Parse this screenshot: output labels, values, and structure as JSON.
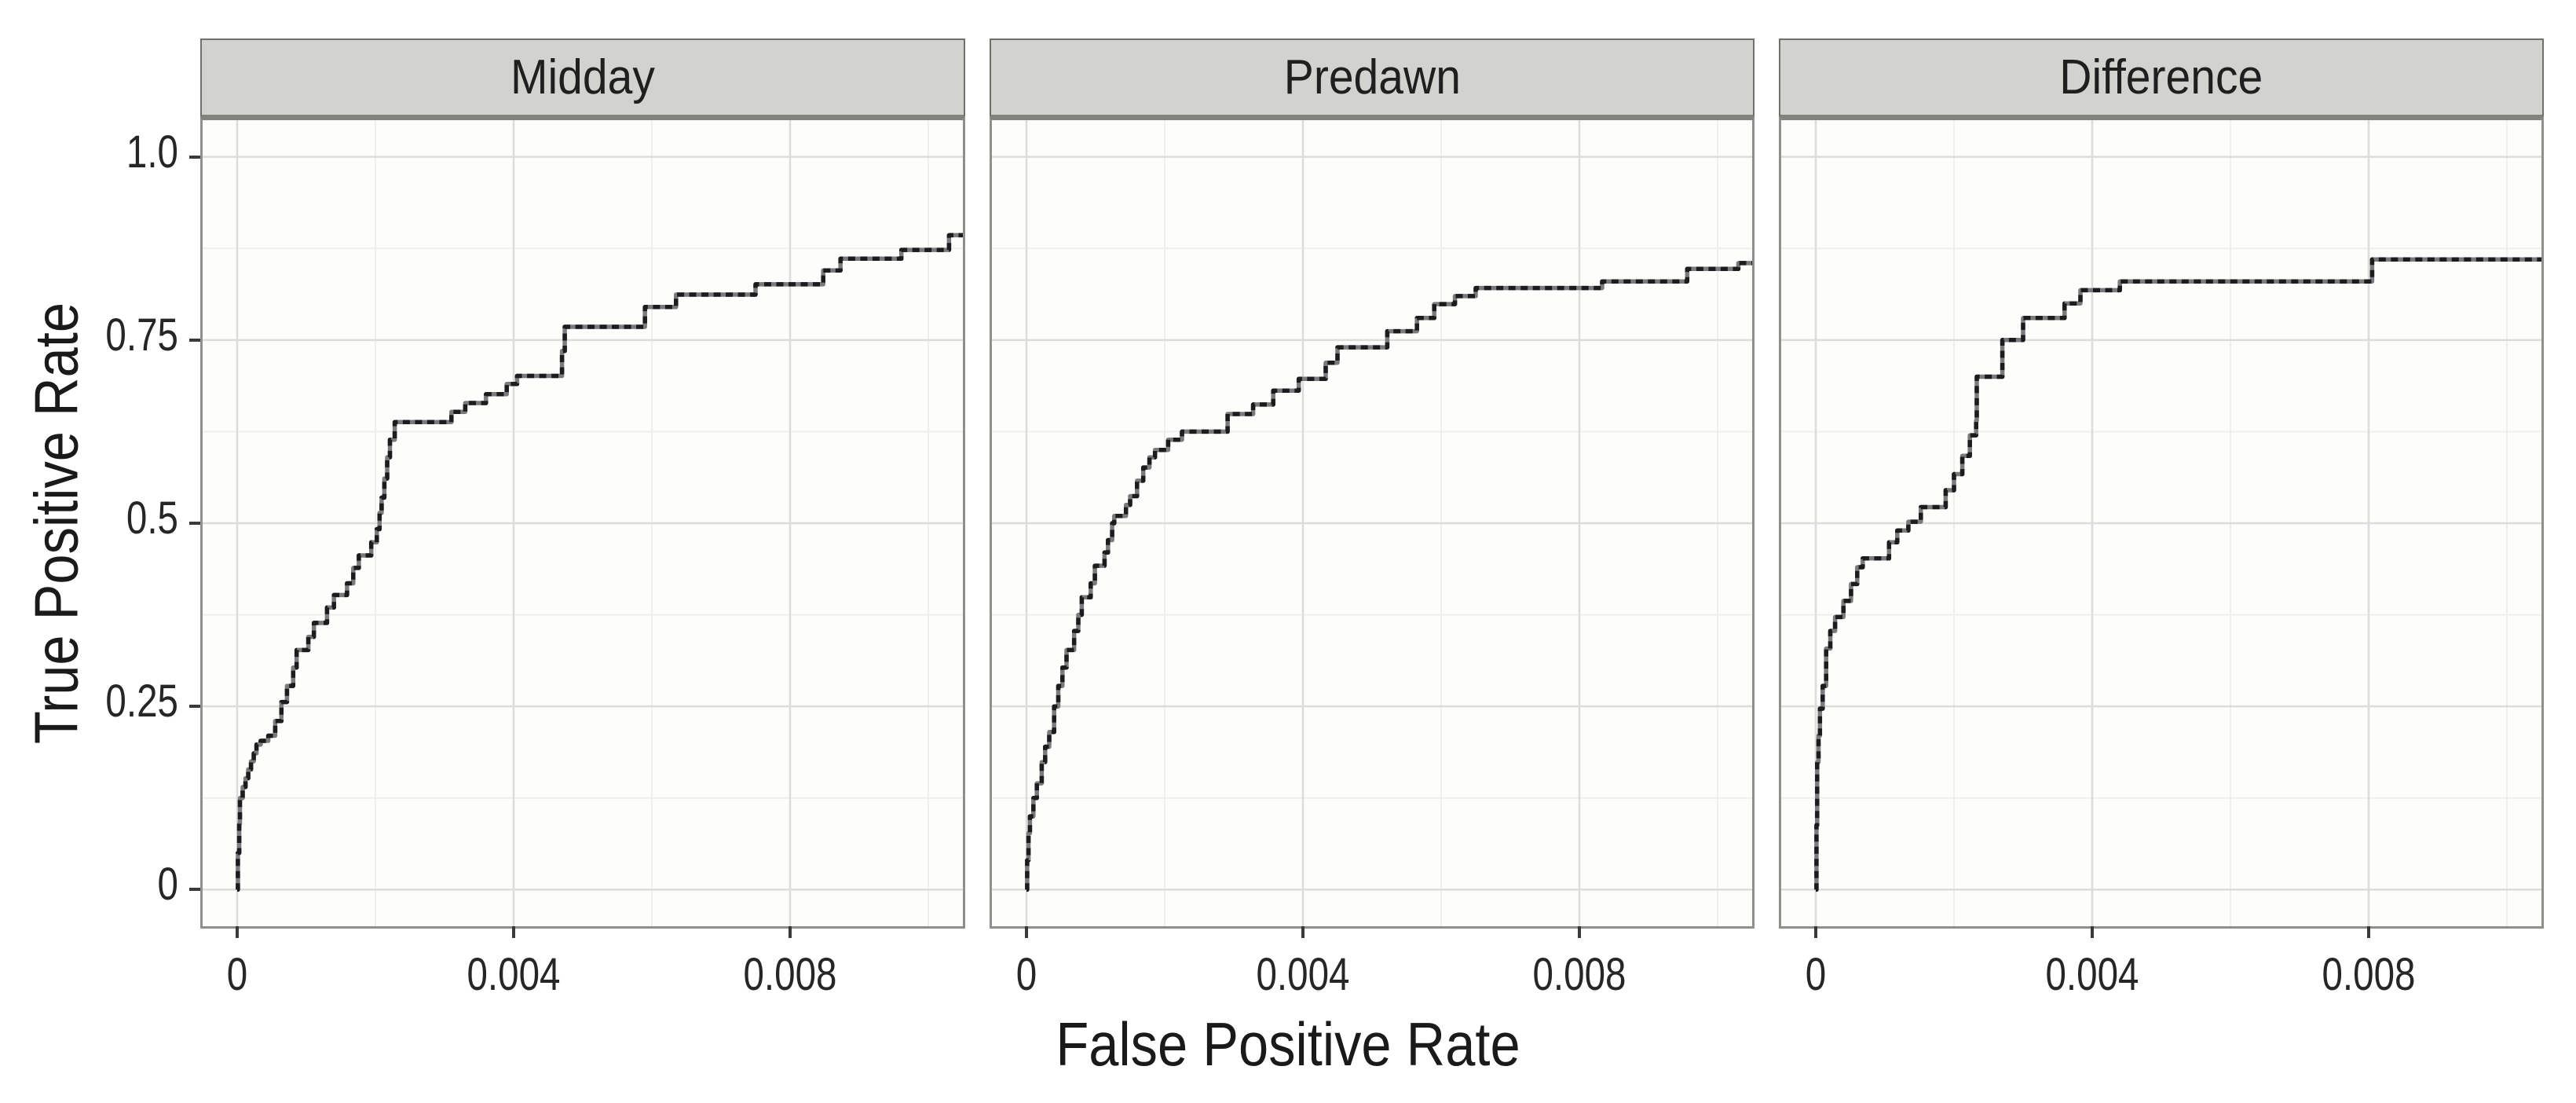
{
  "chart_data": {
    "type": "line",
    "subtype": "step-roc-faceted",
    "title": "",
    "x_axis": {
      "title": "False Positive Rate",
      "ticks": [
        0,
        0.004,
        0.008
      ],
      "tick_labels": [
        "0",
        "0.004",
        "0.008"
      ],
      "minor_gridlines": [
        0.002,
        0.006,
        0.01
      ],
      "range": [
        -0.0005,
        0.0105
      ],
      "grid": "on"
    },
    "y_axis": {
      "title": "True Positive Rate",
      "ticks": [
        0,
        0.25,
        0.5,
        0.75,
        1.0
      ],
      "tick_labels": [
        "0",
        "0.25",
        "0.5",
        "0.75",
        "1.0"
      ],
      "minor_gridlines": [
        0.125,
        0.375,
        0.625,
        0.875
      ],
      "range": [
        -0.05,
        1.05
      ],
      "grid": "on"
    },
    "legend": "none",
    "facets": [
      {
        "label": "Midday",
        "series": "ROC step curve",
        "points": [
          [
            0,
            0
          ],
          [
            1e-05,
            0.05
          ],
          [
            3e-05,
            0.09
          ],
          [
            4e-05,
            0.125
          ],
          [
            8e-05,
            0.14
          ],
          [
            0.00012,
            0.152
          ],
          [
            0.00016,
            0.164
          ],
          [
            0.0002,
            0.175
          ],
          [
            0.00024,
            0.186
          ],
          [
            0.00028,
            0.198
          ],
          [
            0.00034,
            0.203
          ],
          [
            0.00045,
            0.21
          ],
          [
            0.00055,
            0.23
          ],
          [
            0.00064,
            0.256
          ],
          [
            0.00072,
            0.278
          ],
          [
            0.00081,
            0.303
          ],
          [
            0.00086,
            0.327
          ],
          [
            0.00103,
            0.345
          ],
          [
            0.00111,
            0.364
          ],
          [
            0.0013,
            0.385
          ],
          [
            0.0014,
            0.402
          ],
          [
            0.00159,
            0.418
          ],
          [
            0.00168,
            0.439
          ],
          [
            0.00176,
            0.456
          ],
          [
            0.00194,
            0.474
          ],
          [
            0.00202,
            0.492
          ],
          [
            0.00206,
            0.514
          ],
          [
            0.00209,
            0.535
          ],
          [
            0.00213,
            0.561
          ],
          [
            0.00217,
            0.59
          ],
          [
            0.00221,
            0.614
          ],
          [
            0.00228,
            0.638
          ],
          [
            0.0031,
            0.652
          ],
          [
            0.0033,
            0.664
          ],
          [
            0.0036,
            0.676
          ],
          [
            0.0039,
            0.69
          ],
          [
            0.00405,
            0.701
          ],
          [
            0.0047,
            0.735
          ],
          [
            0.00474,
            0.768
          ],
          [
            0.0059,
            0.795
          ],
          [
            0.00635,
            0.812
          ],
          [
            0.0075,
            0.826
          ],
          [
            0.00848,
            0.845
          ],
          [
            0.00873,
            0.861
          ],
          [
            0.00961,
            0.873
          ],
          [
            0.0103,
            0.893
          ]
        ]
      },
      {
        "label": "Predawn",
        "series": "ROC step curve",
        "points": [
          [
            0,
            0
          ],
          [
            1e-05,
            0.04
          ],
          [
            3e-05,
            0.077
          ],
          [
            5e-05,
            0.1
          ],
          [
            0.0001,
            0.125
          ],
          [
            0.00015,
            0.145
          ],
          [
            0.00022,
            0.174
          ],
          [
            0.00027,
            0.195
          ],
          [
            0.00033,
            0.215
          ],
          [
            0.0004,
            0.25
          ],
          [
            0.00046,
            0.278
          ],
          [
            0.00052,
            0.303
          ],
          [
            0.00058,
            0.327
          ],
          [
            0.00069,
            0.353
          ],
          [
            0.00075,
            0.375
          ],
          [
            0.0008,
            0.399
          ],
          [
            0.00093,
            0.418
          ],
          [
            0.00099,
            0.442
          ],
          [
            0.00113,
            0.46
          ],
          [
            0.00118,
            0.477
          ],
          [
            0.00124,
            0.5
          ],
          [
            0.00127,
            0.51
          ],
          [
            0.00144,
            0.525
          ],
          [
            0.0015,
            0.537
          ],
          [
            0.0016,
            0.558
          ],
          [
            0.00169,
            0.576
          ],
          [
            0.00178,
            0.59
          ],
          [
            0.00186,
            0.6
          ],
          [
            0.00205,
            0.614
          ],
          [
            0.00225,
            0.625
          ],
          [
            0.00291,
            0.649
          ],
          [
            0.00328,
            0.662
          ],
          [
            0.00357,
            0.681
          ],
          [
            0.00394,
            0.697
          ],
          [
            0.00433,
            0.719
          ],
          [
            0.0045,
            0.74
          ],
          [
            0.00522,
            0.762
          ],
          [
            0.00565,
            0.78
          ],
          [
            0.0059,
            0.799
          ],
          [
            0.0062,
            0.81
          ],
          [
            0.0065,
            0.821
          ],
          [
            0.00833,
            0.83
          ],
          [
            0.00956,
            0.847
          ],
          [
            0.0103,
            0.855
          ]
        ]
      },
      {
        "label": "Difference",
        "series": "ROC step curve",
        "points": [
          [
            0,
            0
          ],
          [
            1e-05,
            0.088
          ],
          [
            2e-05,
            0.174
          ],
          [
            4e-05,
            0.21
          ],
          [
            6e-05,
            0.247
          ],
          [
            0.0001,
            0.278
          ],
          [
            0.00015,
            0.329
          ],
          [
            0.00021,
            0.353
          ],
          [
            0.00028,
            0.372
          ],
          [
            0.0004,
            0.394
          ],
          [
            0.00051,
            0.417
          ],
          [
            0.0006,
            0.44
          ],
          [
            0.00068,
            0.452
          ],
          [
            0.00106,
            0.474
          ],
          [
            0.00118,
            0.49
          ],
          [
            0.00134,
            0.502
          ],
          [
            0.00152,
            0.522
          ],
          [
            0.00188,
            0.545
          ],
          [
            0.002,
            0.567
          ],
          [
            0.00212,
            0.592
          ],
          [
            0.00223,
            0.62
          ],
          [
            0.00232,
            0.64
          ],
          [
            0.00233,
            0.7
          ],
          [
            0.0027,
            0.75
          ],
          [
            0.003,
            0.78
          ],
          [
            0.0036,
            0.8
          ],
          [
            0.00383,
            0.818
          ],
          [
            0.0044,
            0.83
          ],
          [
            0.00805,
            0.86
          ]
        ]
      }
    ],
    "style": {
      "curve_color": "#1c1c1e",
      "curve_under_color": "#7b7b7e",
      "strip_background": "#d2d2ce",
      "strip_border": "#6f6f6b",
      "panel_border": "#8f8f8b",
      "grid_major_color": "#dcdcdb",
      "grid_minor_color": "#efefed",
      "text_color": "#262626",
      "tick_color": "#3a3a3a",
      "background": "#ffffff"
    }
  }
}
